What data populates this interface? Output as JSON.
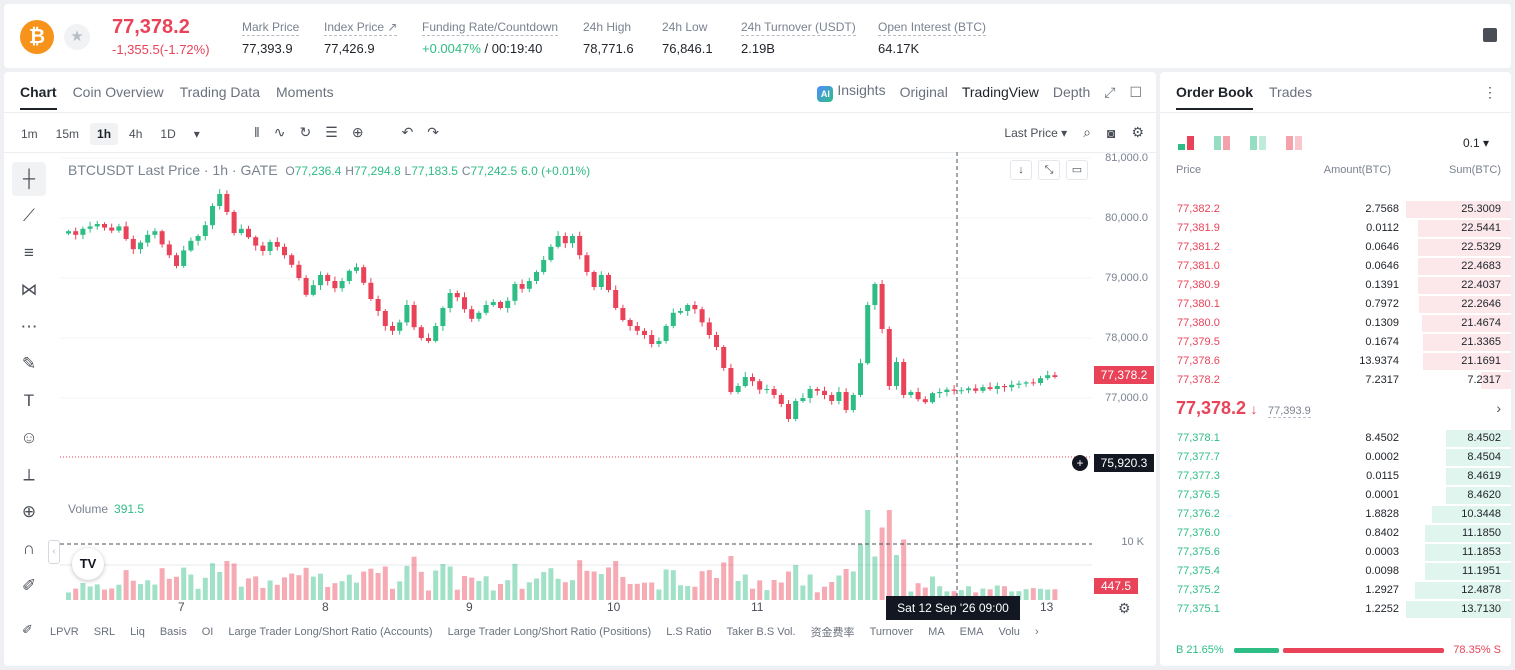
{
  "header": {
    "coin_symbol": "₿",
    "price": "77,378.2",
    "change": "-1,355.5(-1.72%)",
    "stats": [
      {
        "label": "Mark Price",
        "value": "77,393.9"
      },
      {
        "label": "Index Price ↗",
        "value": "77,426.9"
      },
      {
        "label": "Funding Rate/Countdown",
        "value_green": "+0.0047%",
        "value": " / 00:19:40"
      },
      {
        "label": "24h High",
        "value": "78,771.6"
      },
      {
        "label": "24h Low",
        "value": "76,846.1"
      },
      {
        "label": "24h Turnover (USDT)",
        "value": "2.19B"
      },
      {
        "label": "Open Interest (BTC)",
        "value": "64.17K"
      }
    ]
  },
  "chart_tabs": [
    "Chart",
    "Coin Overview",
    "Trading Data",
    "Moments"
  ],
  "view_tabs": {
    "insights": "Insights",
    "original": "Original",
    "tradingview": "TradingView",
    "depth": "Depth"
  },
  "intervals": [
    "1m",
    "15m",
    "1h",
    "4h",
    "1D"
  ],
  "price_type": "Last Price",
  "legend": {
    "title": "BTCUSDT Last Price · 1h · GATE",
    "o_key": "O",
    "o": "77,236.4",
    "h_key": "H",
    "h": "77,294.8",
    "l_key": "L",
    "l": "77,183.5",
    "c_key": "C",
    "c": "77,242.5",
    "chg": "6.0 (+0.01%)"
  },
  "y_axis": [
    "81,000.0",
    "80,000.0",
    "79,000.0",
    "78,000.0",
    "77,000.0"
  ],
  "last_price_tag": "77,378.2",
  "crosshair_price": "75,920.3",
  "volume": {
    "label": "Volume",
    "value": "391.5",
    "axis": "10 K",
    "tag": "447.5"
  },
  "x_axis": [
    "7",
    "8",
    "9",
    "10",
    "11",
    "13"
  ],
  "crosshair_time": "Sat 12 Sep '26   09:00",
  "indicators": [
    "LPVR",
    "SRL",
    "Liq",
    "Basis",
    "OI",
    "Large Trader Long/Short Ratio (Accounts)",
    "Large Trader Long/Short Ratio (Positions)",
    "L.S Ratio",
    "Taker B.S Vol.",
    "资金费率",
    "Turnover",
    "MA",
    "EMA",
    "Volu"
  ],
  "chart_data": {
    "type": "candlestick",
    "title": "BTCUSDT Last Price · 1h · GATE",
    "ylim": [
      76000,
      81000
    ],
    "close": [
      79780,
      79720,
      79820,
      79860,
      79900,
      79840,
      79790,
      79860,
      79650,
      79480,
      79590,
      79720,
      79780,
      79560,
      79380,
      79200,
      79460,
      79620,
      79700,
      79880,
      80200,
      80400,
      80100,
      79750,
      79820,
      79680,
      79540,
      79450,
      79600,
      79520,
      79380,
      79220,
      79000,
      78720,
      78880,
      79050,
      78950,
      78830,
      78950,
      79120,
      79180,
      78920,
      78650,
      78450,
      78200,
      78120,
      78260,
      78550,
      78180,
      78000,
      77950,
      78200,
      78500,
      78750,
      78680,
      78480,
      78320,
      78420,
      78550,
      78600,
      78500,
      78620,
      78900,
      78820,
      78950,
      79100,
      79300,
      79520,
      79700,
      79580,
      79700,
      79380,
      79100,
      78850,
      79050,
      78800,
      78500,
      78300,
      78200,
      78120,
      78050,
      77900,
      77950,
      78200,
      78420,
      78450,
      78550,
      78480,
      78260,
      78050,
      77850,
      77500,
      77100,
      77200,
      77350,
      77280,
      77140,
      77150,
      77050,
      76900,
      76650,
      76950,
      77000,
      77150,
      77120,
      77050,
      76950,
      77100,
      76800,
      77050,
      77580,
      78550,
      78900,
      78150,
      77200,
      77600,
      77050,
      77100,
      76980,
      76930,
      77080,
      77100,
      77140,
      77120,
      77130,
      77160,
      77120,
      77180,
      77150,
      77200,
      77180,
      77220,
      77240,
      77260,
      77250,
      77330,
      77380,
      77350
    ]
  },
  "orderbook": {
    "tabs": [
      "Order Book",
      "Trades"
    ],
    "precision": "0.1 ▾",
    "headers": {
      "price": "Price",
      "amount": "Amount(BTC)",
      "sum": "Sum(BTC)"
    },
    "asks": [
      {
        "price": "77,382.2",
        "amount": "2.7568",
        "sum": "25.3009",
        "depth": 1.0
      },
      {
        "price": "77,381.9",
        "amount": "0.0112",
        "sum": "22.5441",
        "depth": 0.89
      },
      {
        "price": "77,381.2",
        "amount": "0.0646",
        "sum": "22.5329",
        "depth": 0.89
      },
      {
        "price": "77,381.0",
        "amount": "0.0646",
        "sum": "22.4683",
        "depth": 0.89
      },
      {
        "price": "77,380.9",
        "amount": "0.1391",
        "sum": "22.4037",
        "depth": 0.89
      },
      {
        "price": "77,380.1",
        "amount": "0.7972",
        "sum": "22.2646",
        "depth": 0.88
      },
      {
        "price": "77,380.0",
        "amount": "0.1309",
        "sum": "21.4674",
        "depth": 0.85
      },
      {
        "price": "77,379.5",
        "amount": "0.1674",
        "sum": "21.3365",
        "depth": 0.84
      },
      {
        "price": "77,378.6",
        "amount": "13.9374",
        "sum": "21.1691",
        "depth": 0.84
      },
      {
        "price": "77,378.2",
        "amount": "7.2317",
        "sum": "7.2317",
        "depth": 0.29
      }
    ],
    "mid_price": "77,378.2",
    "mid_arrow": "↓",
    "mid_mark": "77,393.9",
    "bids": [
      {
        "price": "77,378.1",
        "amount": "8.4502",
        "sum": "8.4502",
        "depth": 0.62
      },
      {
        "price": "77,377.7",
        "amount": "0.0002",
        "sum": "8.4504",
        "depth": 0.62
      },
      {
        "price": "77,377.3",
        "amount": "0.0115",
        "sum": "8.4619",
        "depth": 0.62
      },
      {
        "price": "77,376.5",
        "amount": "0.0001",
        "sum": "8.4620",
        "depth": 0.62
      },
      {
        "price": "77,376.2",
        "amount": "1.8828",
        "sum": "10.3448",
        "depth": 0.75
      },
      {
        "price": "77,376.0",
        "amount": "0.8402",
        "sum": "11.1850",
        "depth": 0.82
      },
      {
        "price": "77,375.6",
        "amount": "0.0003",
        "sum": "11.1853",
        "depth": 0.82
      },
      {
        "price": "77,375.4",
        "amount": "0.0098",
        "sum": "11.1951",
        "depth": 0.82
      },
      {
        "price": "77,375.2",
        "amount": "1.2927",
        "sum": "12.4878",
        "depth": 0.91
      },
      {
        "price": "77,375.1",
        "amount": "1.2252",
        "sum": "13.7130",
        "depth": 1.0
      }
    ],
    "ratio": {
      "buy": "B 21.65%",
      "sell": "78.35% S"
    }
  },
  "colors": {
    "up": "#2ebd85",
    "down": "#e94359"
  }
}
